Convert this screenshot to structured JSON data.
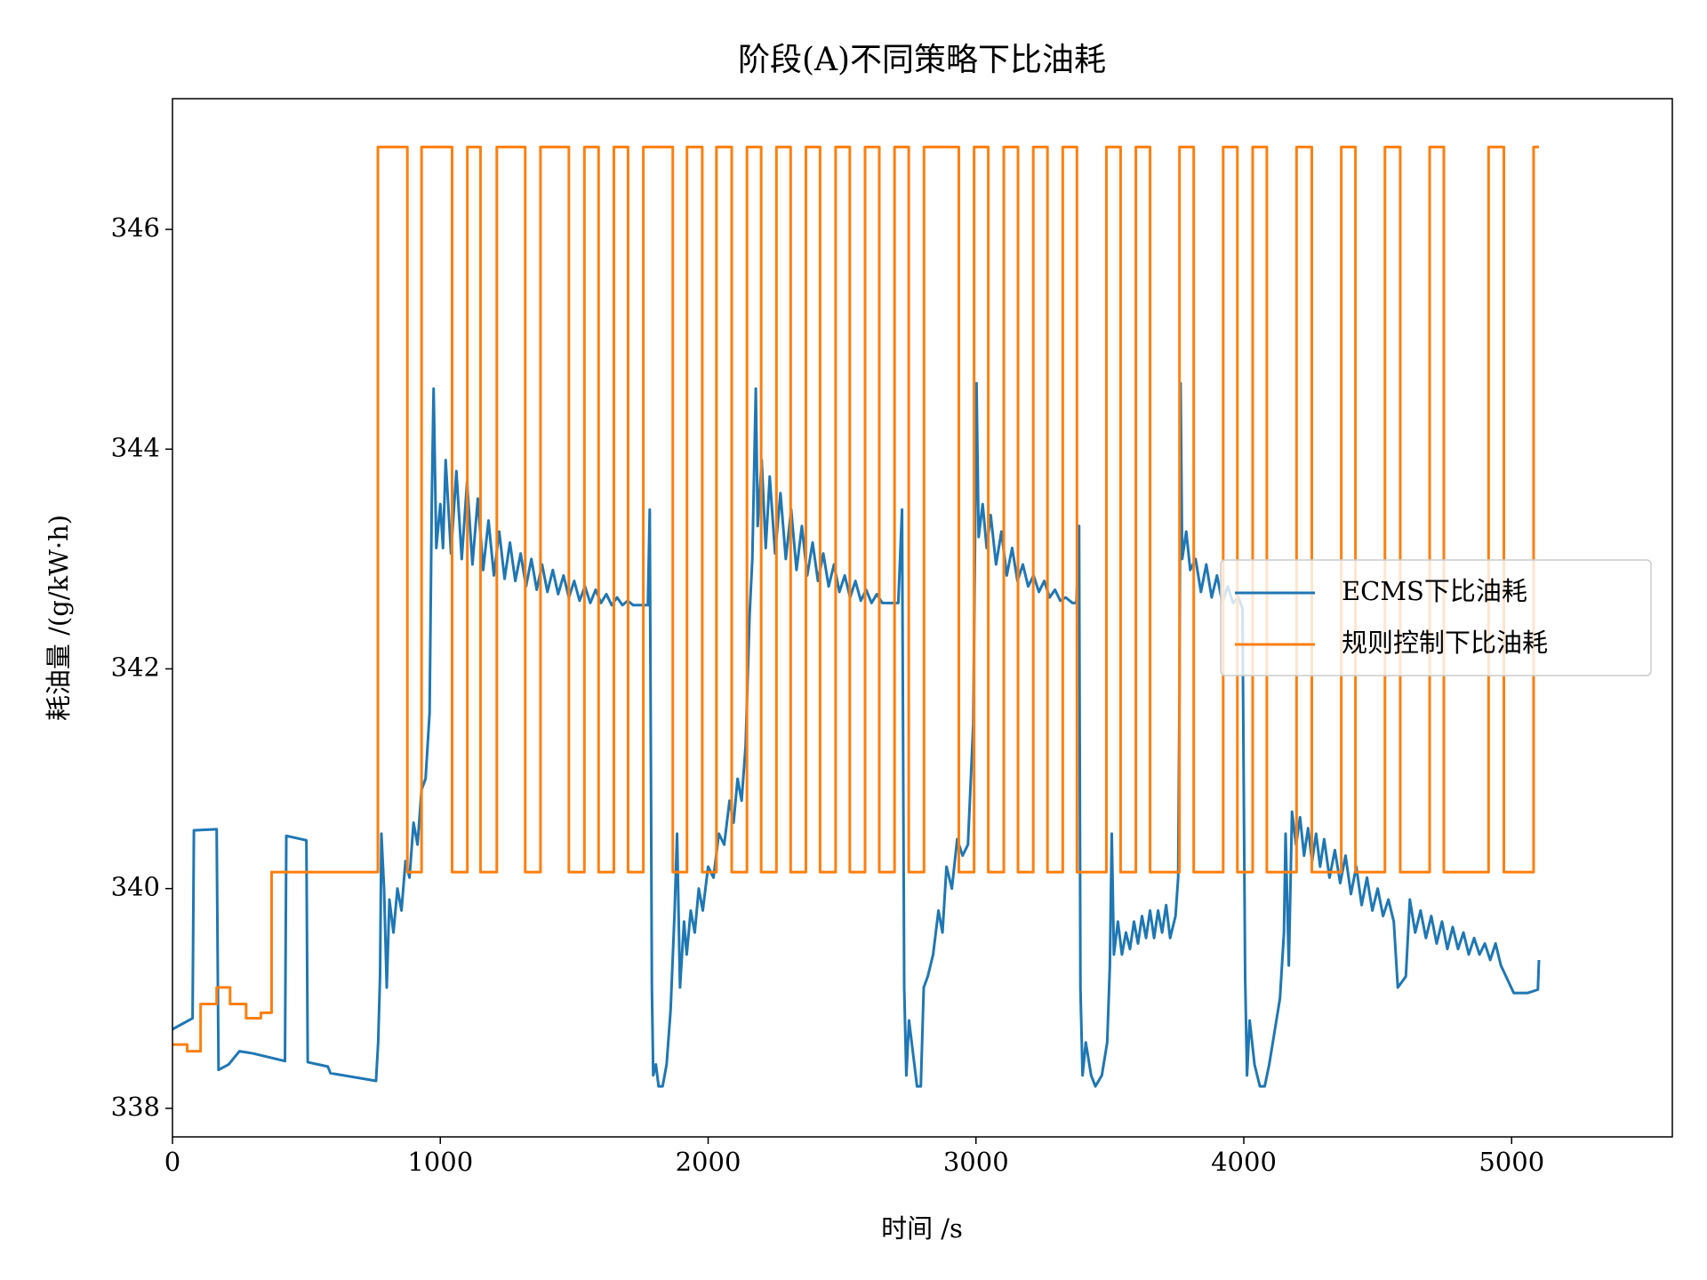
{
  "chart_data": {
    "type": "line",
    "title": "阶段(A)不同策略下比油耗",
    "xlabel": "时间 /s",
    "ylabel": "耗油量 /(g/kW·h)",
    "xlim": [
      0,
      5600
    ],
    "xticks": [
      0,
      1000,
      2000,
      3000,
      4000,
      5000
    ],
    "ylim": [
      337.74,
      347.19
    ],
    "yticks": [
      338,
      340,
      342,
      344,
      346
    ],
    "legend": "center right",
    "series": [
      {
        "name": "ECMS下比油耗",
        "color": "#1f77b4",
        "drawstyle": "default",
        "x": [
          0,
          75,
          80,
          165,
          172,
          210,
          250,
          300,
          420,
          425,
          500,
          505,
          580,
          590,
          760,
          768,
          775,
          780,
          790,
          800,
          810,
          825,
          840,
          855,
          870,
          885,
          900,
          915,
          930,
          945,
          960,
          968,
          975,
          985,
          1000,
          1010,
          1020,
          1040,
          1060,
          1080,
          1100,
          1120,
          1140,
          1160,
          1180,
          1200,
          1220,
          1240,
          1260,
          1280,
          1300,
          1320,
          1340,
          1360,
          1380,
          1400,
          1420,
          1440,
          1460,
          1480,
          1500,
          1520,
          1540,
          1560,
          1580,
          1600,
          1620,
          1640,
          1660,
          1680,
          1700,
          1720,
          1760,
          1775,
          1782,
          1790,
          1795,
          1805,
          1815,
          1830,
          1845,
          1860,
          1875,
          1884,
          1895,
          1910,
          1920,
          1935,
          1950,
          1965,
          1980,
          2000,
          2020,
          2040,
          2060,
          2080,
          2095,
          2110,
          2125,
          2140,
          2155,
          2165,
          2178,
          2185,
          2200,
          2215,
          2230,
          2250,
          2270,
          2290,
          2310,
          2330,
          2350,
          2370,
          2390,
          2410,
          2430,
          2450,
          2470,
          2490,
          2510,
          2530,
          2550,
          2570,
          2590,
          2610,
          2630,
          2650,
          2670,
          2710,
          2724,
          2732,
          2740,
          2750,
          2765,
          2780,
          2794,
          2805,
          2820,
          2840,
          2860,
          2875,
          2890,
          2910,
          2930,
          2950,
          2970,
          2990,
          3002,
          3010,
          3025,
          3040,
          3055,
          3075,
          3095,
          3115,
          3135,
          3155,
          3175,
          3195,
          3215,
          3235,
          3255,
          3275,
          3295,
          3315,
          3335,
          3360,
          3375,
          3385,
          3390,
          3398,
          3410,
          3430,
          3446,
          3470,
          3490,
          3500,
          3507,
          3515,
          3530,
          3545,
          3560,
          3575,
          3590,
          3605,
          3620,
          3635,
          3650,
          3665,
          3680,
          3695,
          3710,
          3725,
          3745,
          3755,
          3760,
          3764,
          3770,
          3785,
          3800,
          3820,
          3840,
          3860,
          3880,
          3900,
          3920,
          3940,
          3960,
          3980,
          3995,
          4005,
          4012,
          4022,
          4040,
          4060,
          4078,
          4095,
          4115,
          4135,
          4150,
          4156,
          4168,
          4180,
          4195,
          4210,
          4225,
          4240,
          4255,
          4270,
          4285,
          4300,
          4320,
          4340,
          4360,
          4380,
          4400,
          4420,
          4440,
          4460,
          4480,
          4500,
          4520,
          4540,
          4560,
          4575,
          4590,
          4605,
          4620,
          4640,
          4660,
          4680,
          4700,
          4720,
          4740,
          4760,
          4780,
          4800,
          4820,
          4840,
          4860,
          4880,
          4900,
          4920,
          4940,
          4960,
          5008,
          5060,
          5098,
          5102
        ],
        "values": [
          338.72,
          338.82,
          340.53,
          340.54,
          338.35,
          338.4,
          338.52,
          338.5,
          338.43,
          340.48,
          340.44,
          338.42,
          338.38,
          338.32,
          338.25,
          338.6,
          339.2,
          340.5,
          340.0,
          339.1,
          339.9,
          339.6,
          340.0,
          339.8,
          340.25,
          340.1,
          340.6,
          340.4,
          340.9,
          341.0,
          341.6,
          343.5,
          344.55,
          343.1,
          343.5,
          343.1,
          343.9,
          343.05,
          343.8,
          343.0,
          343.7,
          342.95,
          343.55,
          342.9,
          343.35,
          342.85,
          343.25,
          342.82,
          343.15,
          342.8,
          343.05,
          342.75,
          343.0,
          342.72,
          342.95,
          342.7,
          342.9,
          342.68,
          342.85,
          342.65,
          342.8,
          342.62,
          342.75,
          342.6,
          342.72,
          342.6,
          342.68,
          342.58,
          342.65,
          342.58,
          342.62,
          342.58,
          342.58,
          342.58,
          343.45,
          339.1,
          338.3,
          338.4,
          338.2,
          338.2,
          338.4,
          338.9,
          339.8,
          340.5,
          339.1,
          339.7,
          339.4,
          339.8,
          339.6,
          340.0,
          339.8,
          340.2,
          340.1,
          340.5,
          340.4,
          340.8,
          340.6,
          341.0,
          340.8,
          341.3,
          342.5,
          343.0,
          344.55,
          343.3,
          343.9,
          343.1,
          343.75,
          343.05,
          343.6,
          343.0,
          343.45,
          342.9,
          343.3,
          342.85,
          343.15,
          342.8,
          343.05,
          342.75,
          342.95,
          342.7,
          342.85,
          342.65,
          342.8,
          342.62,
          342.72,
          342.6,
          342.68,
          342.6,
          342.6,
          342.6,
          343.45,
          339.1,
          338.3,
          338.8,
          338.5,
          338.2,
          338.2,
          339.1,
          339.2,
          339.4,
          339.8,
          339.6,
          340.2,
          340.0,
          340.45,
          340.3,
          340.4,
          341.5,
          344.6,
          343.2,
          343.5,
          343.1,
          343.4,
          342.95,
          343.25,
          342.85,
          343.1,
          342.8,
          342.95,
          342.75,
          342.85,
          342.7,
          342.8,
          342.65,
          342.72,
          342.62,
          342.65,
          342.6,
          342.6,
          343.3,
          339.1,
          338.3,
          338.6,
          338.3,
          338.2,
          338.3,
          338.6,
          339.3,
          340.5,
          339.4,
          339.7,
          339.4,
          339.6,
          339.45,
          339.7,
          339.5,
          339.75,
          339.55,
          339.8,
          339.55,
          339.8,
          339.6,
          339.85,
          339.55,
          339.75,
          340.1,
          341.8,
          344.6,
          343.0,
          343.25,
          342.9,
          343.0,
          342.7,
          342.95,
          342.65,
          342.85,
          342.6,
          342.75,
          342.6,
          342.65,
          342.55,
          339.2,
          338.3,
          338.8,
          338.4,
          338.2,
          338.2,
          338.4,
          338.7,
          339.0,
          339.6,
          340.5,
          339.3,
          340.7,
          340.4,
          340.65,
          340.3,
          340.55,
          340.25,
          340.5,
          340.2,
          340.45,
          340.1,
          340.35,
          340.05,
          340.3,
          339.95,
          340.2,
          339.85,
          340.1,
          339.8,
          340.0,
          339.75,
          339.9,
          339.7,
          339.1,
          339.15,
          339.2,
          339.9,
          339.6,
          339.8,
          339.55,
          339.75,
          339.5,
          339.7,
          339.45,
          339.65,
          339.45,
          339.6,
          339.4,
          339.55,
          339.4,
          339.5,
          339.35,
          339.5,
          339.3,
          339.05,
          339.05,
          339.08,
          339.35
        ]
      },
      {
        "name": "规则控制下比油耗",
        "color": "#ff7f0e",
        "drawstyle": "steps-post",
        "x": [
          0,
          55,
          105,
          165,
          215,
          275,
          330,
          370,
          767,
          877,
          930,
          1044,
          1101,
          1150,
          1211,
          1317,
          1374,
          1480,
          1538,
          1591,
          1648,
          1701,
          1758,
          1868,
          1921,
          1978,
          2031,
          2088,
          2145,
          2198,
          2255,
          2308,
          2365,
          2418,
          2476,
          2529,
          2586,
          2639,
          2696,
          2749,
          2806,
          2936,
          2993,
          3046,
          3104,
          3157,
          3214,
          3267,
          3324,
          3377,
          3487,
          3540,
          3597,
          3650,
          3760,
          3813,
          3923,
          3976,
          4033,
          4086,
          4197,
          4254,
          4364,
          4417,
          4527,
          4584,
          4694,
          4747,
          4914,
          4971,
          5082,
          5102
        ],
        "values": [
          338.58,
          338.52,
          338.95,
          339.1,
          338.95,
          338.82,
          338.87,
          340.15,
          346.75,
          340.15,
          346.75,
          340.15,
          346.75,
          340.15,
          346.75,
          340.15,
          346.75,
          340.15,
          346.75,
          340.15,
          346.75,
          340.15,
          346.75,
          340.15,
          346.75,
          340.15,
          346.75,
          340.15,
          346.75,
          340.15,
          346.75,
          340.15,
          346.75,
          340.15,
          346.75,
          340.15,
          346.75,
          340.15,
          346.75,
          340.15,
          346.75,
          340.15,
          346.75,
          340.15,
          346.75,
          340.15,
          346.75,
          340.15,
          346.75,
          340.15,
          346.75,
          340.15,
          346.75,
          340.15,
          346.75,
          340.15,
          346.75,
          340.15,
          346.75,
          340.15,
          346.75,
          340.15,
          346.75,
          340.15,
          346.75,
          340.15,
          346.75,
          340.15,
          346.75,
          340.15,
          346.75,
          346.75
        ]
      }
    ]
  }
}
